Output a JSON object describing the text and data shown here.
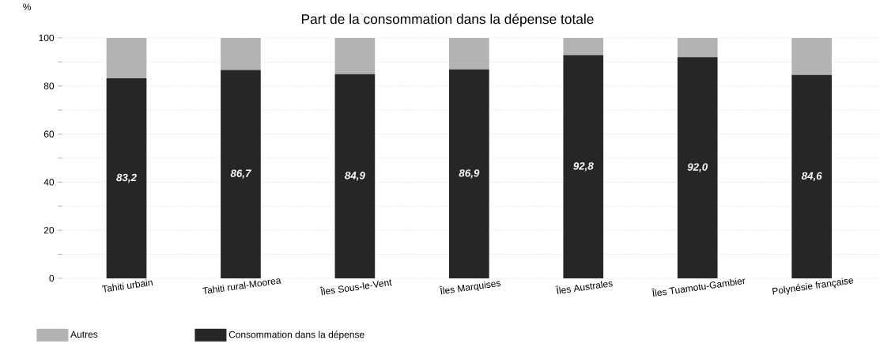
{
  "chart_data": {
    "type": "bar",
    "stacked": true,
    "title": "Part de la consommation dans la dépense totale",
    "ylabel": "%",
    "categories": [
      "Tahiti urbain",
      "Tahiti rural-Moorea",
      "Îles Sous-le-Vent",
      "Îles Marquises",
      "Îles Australes",
      "Îles Tuamotu-Gambier",
      "Polynésie française"
    ],
    "series": [
      {
        "name": "Consommation dans la dépense",
        "color": "#262626",
        "values": [
          83.2,
          86.7,
          84.9,
          86.9,
          92.8,
          92.0,
          84.6
        ],
        "value_labels": [
          "83,2",
          "86,7",
          "84,9",
          "86,9",
          "92,8",
          "92,0",
          "84,6"
        ]
      },
      {
        "name": "Autres",
        "color": "#b3b3b3",
        "values": [
          16.8,
          13.3,
          15.1,
          13.1,
          7.2,
          8.0,
          15.4
        ]
      }
    ],
    "ylim": [
      0,
      100
    ],
    "yticks": [
      0,
      {
        "value": 10,
        "label": null
      },
      20,
      {
        "value": 30,
        "label": null
      },
      40,
      {
        "value": 50,
        "label": null
      },
      60,
      {
        "value": 70,
        "label": null
      },
      80,
      {
        "value": 90,
        "label": null
      },
      100
    ],
    "grid": "y",
    "legend": "bottom"
  }
}
